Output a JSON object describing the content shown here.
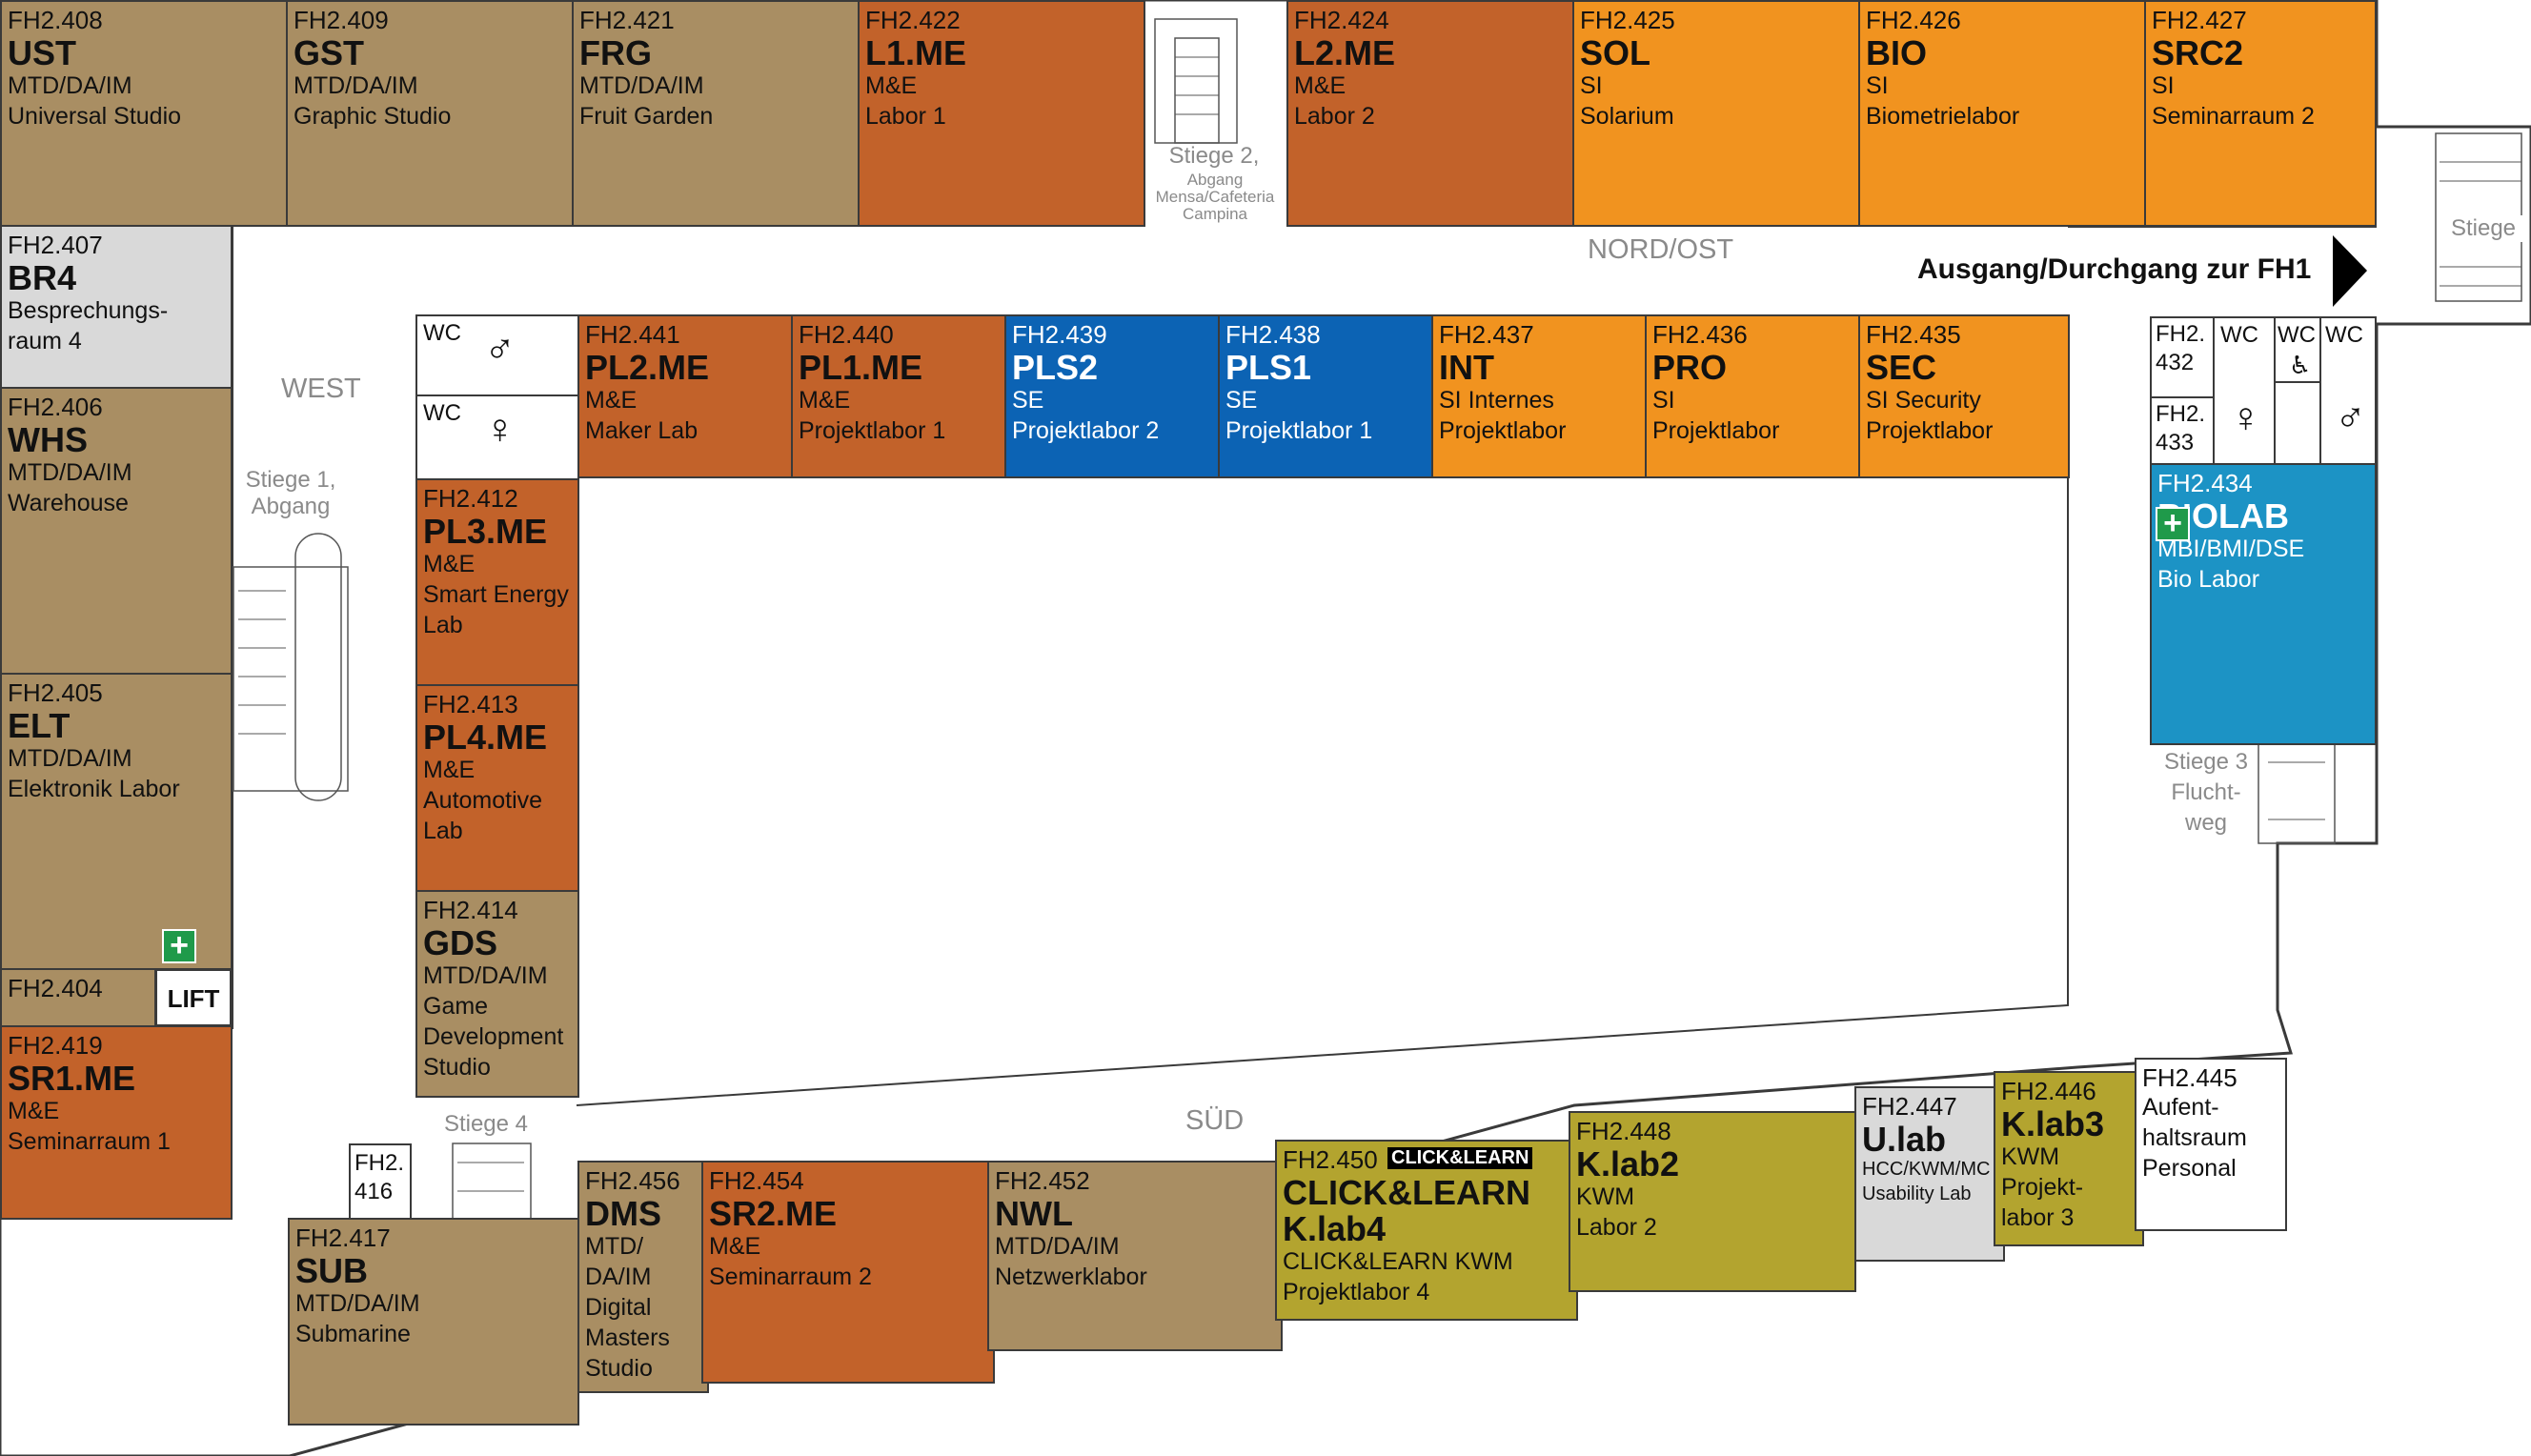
{
  "colors": {
    "brown": "#a98e63",
    "rust": "#c2622a",
    "orange": "#f1931f",
    "blue": "#0c63b4",
    "cyan": "#1c93c5",
    "olive": "#b3a42f",
    "grey": "#d9d9d9",
    "white": "#ffffff"
  },
  "areas": {
    "west": "WEST",
    "nord_ost": "NORD/OST",
    "sued": "SÜD",
    "exit": "Ausgang/Durchgang zur FH1",
    "stiege1": "Stiege 1,\nAbgang",
    "stiege2": "Stiege 2,",
    "stiege2_small": "Abgang\nMensa/Cafeteria\nCampina",
    "stiege3": "Stiege 3\nFlucht-\nweg",
    "stiege4": "Stiege 4",
    "stiege_right": "Stiege",
    "lift": "LIFT"
  },
  "wc": {
    "w1": "WC",
    "w2": "WC",
    "e1": "WC",
    "e2": "WC",
    "e3": "WC"
  },
  "rooms": {
    "r408": {
      "no": "FH2.408",
      "code": "UST",
      "lines": [
        "MTD/DA/IM",
        "Universal Studio"
      ]
    },
    "r409": {
      "no": "FH2.409",
      "code": "GST",
      "lines": [
        "MTD/DA/IM",
        "Graphic Studio"
      ]
    },
    "r421": {
      "no": "FH2.421",
      "code": "FRG",
      "lines": [
        "MTD/DA/IM",
        "Fruit Garden"
      ]
    },
    "r422": {
      "no": "FH2.422",
      "code": "L1.ME",
      "lines": [
        "M&E",
        "Labor 1"
      ]
    },
    "r424": {
      "no": "FH2.424",
      "code": "L2.ME",
      "lines": [
        "M&E",
        "Labor 2"
      ]
    },
    "r425": {
      "no": "FH2.425",
      "code": "SOL",
      "lines": [
        "SI",
        "Solarium"
      ]
    },
    "r426": {
      "no": "FH2.426",
      "code": "BIO",
      "lines": [
        "SI",
        "Biometrielabor"
      ]
    },
    "r427": {
      "no": "FH2.427",
      "code": "SRC2",
      "lines": [
        "SI",
        "Seminarraum 2"
      ]
    },
    "r407": {
      "no": "FH2.407",
      "code": "BR4",
      "lines": [
        "Besprechungs-",
        "raum 4"
      ]
    },
    "r406": {
      "no": "FH2.406",
      "code": "WHS",
      "lines": [
        "MTD/DA/IM",
        "Warehouse"
      ]
    },
    "r405": {
      "no": "FH2.405",
      "code": "ELT",
      "lines": [
        "MTD/DA/IM",
        "Elektronik Labor"
      ]
    },
    "r404": {
      "no": "FH2.404",
      "code": "",
      "lines": []
    },
    "r419": {
      "no": "FH2.419",
      "code": "SR1.ME",
      "lines": [
        "M&E",
        "Seminarraum 1"
      ]
    },
    "r441": {
      "no": "FH2.441",
      "code": "PL2.ME",
      "lines": [
        "M&E",
        "Maker Lab"
      ]
    },
    "r440": {
      "no": "FH2.440",
      "code": "PL1.ME",
      "lines": [
        "M&E",
        "Projektlabor 1"
      ]
    },
    "r439": {
      "no": "FH2.439",
      "code": "PLS2",
      "lines": [
        "SE",
        "Projektlabor 2"
      ]
    },
    "r438": {
      "no": "FH2.438",
      "code": "PLS1",
      "lines": [
        "SE",
        "Projektlabor 1"
      ]
    },
    "r437": {
      "no": "FH2.437",
      "code": "INT",
      "lines": [
        "SI Internes",
        "Projektlabor"
      ]
    },
    "r436": {
      "no": "FH2.436",
      "code": "PRO",
      "lines": [
        "SI",
        "Projektlabor"
      ]
    },
    "r435": {
      "no": "FH2.435",
      "code": "SEC",
      "lines": [
        "SI Security",
        "Projektlabor"
      ]
    },
    "r412": {
      "no": "FH2.412",
      "code": "PL3.ME",
      "lines": [
        "M&E",
        "Smart Energy",
        "Lab"
      ]
    },
    "r413": {
      "no": "FH2.413",
      "code": "PL4.ME",
      "lines": [
        "M&E",
        "Automotive",
        "Lab"
      ]
    },
    "r414": {
      "no": "FH2.414",
      "code": "GDS",
      "lines": [
        "MTD/DA/IM",
        "Game",
        "Development",
        "Studio"
      ]
    },
    "r432": {
      "no": "FH2.\n432"
    },
    "r433": {
      "no": "FH2.\n433"
    },
    "r434": {
      "no": "FH2.434",
      "code": "BIOLAB",
      "lines": [
        "MBI/BMI/DSE",
        "Bio Labor"
      ]
    },
    "r416": {
      "no": "FH2.\n416"
    },
    "r417": {
      "no": "FH2.417",
      "code": "SUB",
      "lines": [
        "MTD/DA/IM",
        "Submarine"
      ]
    },
    "r456": {
      "no": "FH2.456",
      "code": "DMS",
      "lines": [
        "MTD/",
        "DA/IM",
        "Digital",
        "Masters",
        "Studio"
      ]
    },
    "r454": {
      "no": "FH2.454",
      "code": "SR2.ME",
      "lines": [
        "M&E",
        "Seminarraum 2"
      ]
    },
    "r452": {
      "no": "FH2.452",
      "code": "NWL",
      "lines": [
        "MTD/DA/IM",
        "Netzwerklabor"
      ]
    },
    "r450": {
      "no": "FH2.450",
      "badge": "CLICK&LEARN",
      "code": "CLICK&LEARN",
      "code2": "K.lab4",
      "lines": [
        "CLICK&LEARN KWM",
        "Projektlabor 4"
      ]
    },
    "r448": {
      "no": "FH2.448",
      "code": "K.lab2",
      "lines": [
        "KWM",
        "Labor 2"
      ]
    },
    "r447": {
      "no": "FH2.447",
      "code": "U.lab",
      "lines": [
        "HCC/KWM/MC",
        "Usability Lab"
      ]
    },
    "r446": {
      "no": "FH2.446",
      "code": "K.lab3",
      "lines": [
        "KWM",
        "Projekt-",
        "labor 3"
      ]
    },
    "r445": {
      "no": "FH2.445",
      "code": "",
      "lines": [
        "Aufent-",
        "haltsraum",
        "Personal"
      ]
    }
  }
}
